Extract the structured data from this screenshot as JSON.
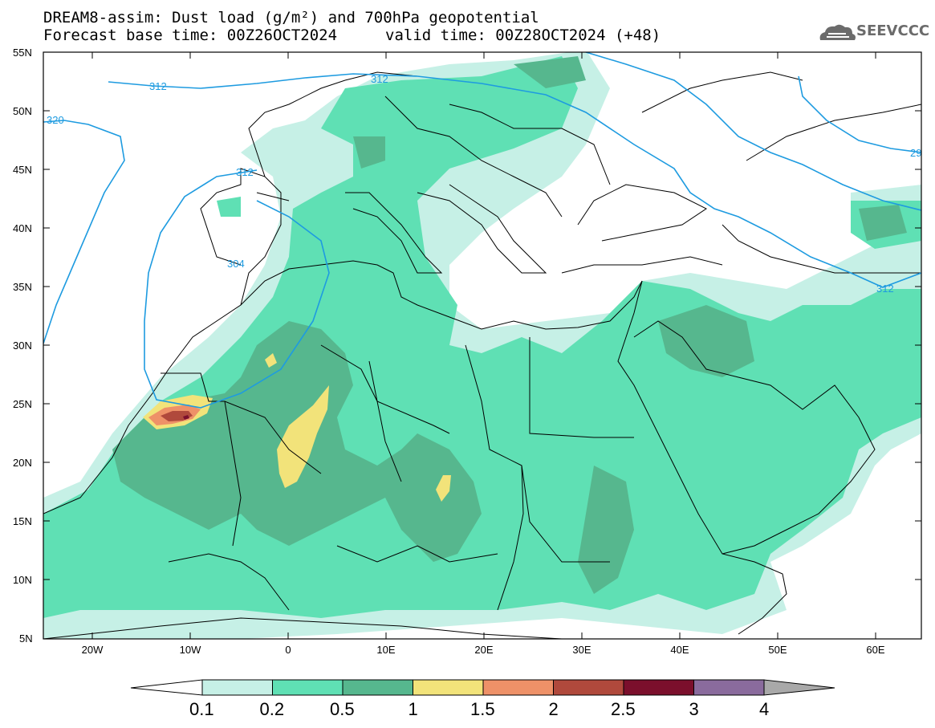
{
  "title": {
    "line1": "DREAM8-assim: Dust load (g/m²) and 700hPa geopotential",
    "line2a": "Forecast base time: 00Z26OCT2024",
    "line2b": "valid time: 00Z28OCT2024 (+48)"
  },
  "logo": {
    "text": "SEEVCCC",
    "icon": "cloud-icon"
  },
  "map": {
    "lat_labels": [
      "55N",
      "50N",
      "45N",
      "40N",
      "35N",
      "30N",
      "25N",
      "20N",
      "15N",
      "10N",
      "5N"
    ],
    "lon_labels": [
      "20W",
      "10W",
      "0",
      "10E",
      "20E",
      "30E",
      "40E",
      "50E",
      "60E"
    ],
    "contour_labels": [
      "312",
      "312",
      "320",
      "312",
      "304",
      "312",
      "29"
    ]
  },
  "colorbar": {
    "colors": [
      "#c6f0e6",
      "#5fe0b4",
      "#56b78e",
      "#f2e37a",
      "#ee9168",
      "#b0493c",
      "#7b0f2c",
      "#8a6b9d",
      "#a9a9a9"
    ],
    "labels": [
      "0.1",
      "0.2",
      "0.5",
      "1",
      "1.5",
      "2",
      "2.5",
      "3",
      "4"
    ]
  },
  "colors": {
    "contour": "#1e9be0",
    "land_outline": "#000000"
  }
}
